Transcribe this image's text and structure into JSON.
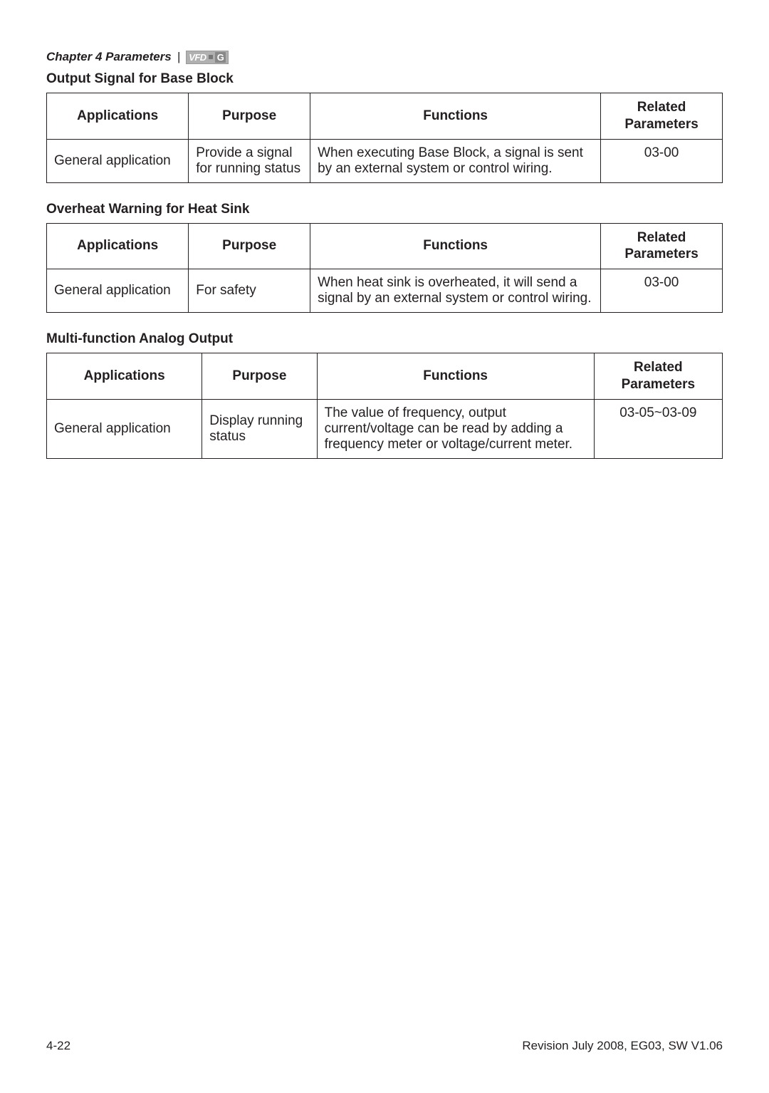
{
  "header": {
    "chapter_title": "Chapter 4  Parameters",
    "divider": "|",
    "brand_vfd": "VFD",
    "brand_g": "G"
  },
  "sections": [
    {
      "title": "Output Signal for Base Block",
      "columns": [
        "Applications",
        "Purpose",
        "Functions",
        "Related Parameters"
      ],
      "row": {
        "applications": "General application",
        "purpose": "Provide a signal for running status",
        "functions": "When executing Base Block, a signal is sent by an external system or control wiring.",
        "related": "03-00"
      }
    },
    {
      "title": "Overheat Warning for Heat Sink",
      "columns": [
        "Applications",
        "Purpose",
        "Functions",
        "Related Parameters"
      ],
      "row": {
        "applications": "General application",
        "purpose": "For safety",
        "functions": "When heat sink is overheated, it will send a signal by an external system or control wiring.",
        "related": "03-00"
      }
    },
    {
      "title": "Multi-function Analog Output",
      "columns": [
        "Applications",
        "Purpose",
        "Functions",
        "Related Parameters"
      ],
      "row": {
        "applications": "General application",
        "purpose": "Display running status",
        "functions": "The value of frequency, output current/voltage can be read by adding a frequency meter or voltage/current meter.",
        "related": "03-05~03-09"
      }
    }
  ],
  "footer": {
    "page": "4-22",
    "revision": "Revision July 2008, EG03, SW V1.06"
  }
}
